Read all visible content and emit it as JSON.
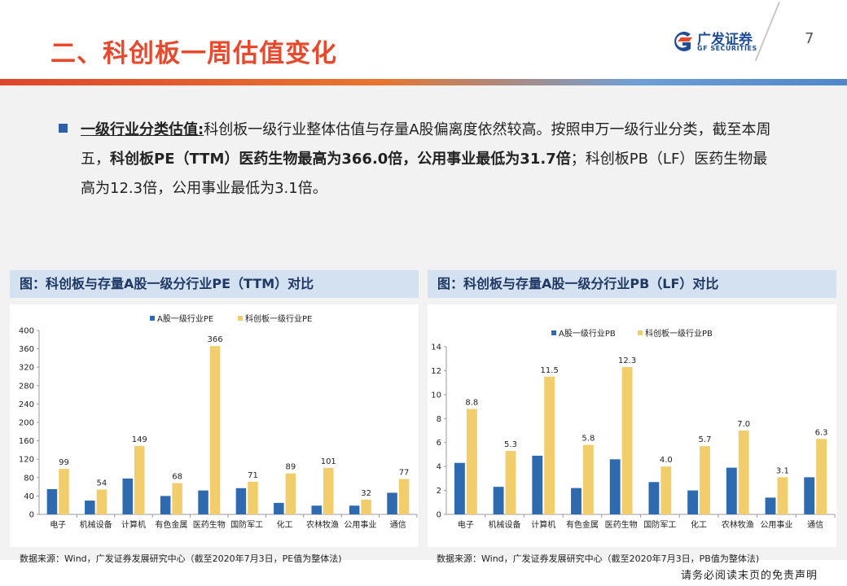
{
  "header": {
    "title": "二、科创板一周估值变化",
    "logo_cn": "广发证券",
    "logo_en": "GF SECURITIES",
    "page_number": "7"
  },
  "paragraph": {
    "lead": "一级行业分类估值:",
    "part1": "科创板一级行业整体估值与存量A股偏离度依然较高。按照申万一级行业分类，截至本周五，",
    "bold_part": "科创板PE（TTM）医药生物最高为366.0倍，公用事业最低为31.7倍",
    "part2": "；科创板PB（LF）医药生物最高为12.3倍，公用事业最低为3.1倍。"
  },
  "captions": {
    "left": "图：科创板与存量A股一级分行业PE（TTM）对比",
    "right": "图：科创板与存量A股一级分行业PB（LF）对比"
  },
  "sources": {
    "left": "数据来源：Wind，广发证券发展研究中心（截至2020年7月3日，PE值为整体法)",
    "right": "数据来源：Wind，广发证券发展研究中心（截至2020年7月3日，PB值为整体法)"
  },
  "disclaimer": "请务必阅读末页的免责声明",
  "colors": {
    "series_a": "#2e6ab0",
    "series_b": "#f1cd6c",
    "title": "#e8482b"
  },
  "chart_data": [
    {
      "type": "bar",
      "categories": [
        "电子",
        "机械设备",
        "计算机",
        "有色金属",
        "医药生物",
        "国防军工",
        "化工",
        "农林牧渔",
        "公用事业",
        "通信"
      ],
      "series": [
        {
          "name": "A股一级行业PE",
          "values": [
            55,
            30,
            78,
            40,
            52,
            57,
            25,
            19,
            19,
            47
          ]
        },
        {
          "name": "科创板一级行业PE",
          "values": [
            99,
            54,
            149,
            68,
            366,
            71,
            89,
            101,
            32,
            77
          ],
          "labels": [
            "99",
            "54",
            "149",
            "68",
            "366",
            "71",
            "89",
            "101",
            "32",
            "77"
          ]
        }
      ],
      "yticks": [
        0,
        40,
        80,
        120,
        160,
        200,
        240,
        280,
        320,
        360,
        400
      ],
      "ylim": [
        0,
        400
      ],
      "legend": "top-left"
    },
    {
      "type": "bar",
      "categories": [
        "电子",
        "机械设备",
        "计算机",
        "有色金属",
        "医药生物",
        "国防军工",
        "化工",
        "农林牧渔",
        "公用事业",
        "通信"
      ],
      "series": [
        {
          "name": "A股一级行业PB",
          "values": [
            4.3,
            2.3,
            4.9,
            2.2,
            4.6,
            2.7,
            2.0,
            3.9,
            1.4,
            3.1
          ]
        },
        {
          "name": "科创板一级行业PB",
          "values": [
            8.8,
            5.3,
            11.5,
            5.8,
            12.3,
            4.0,
            5.7,
            7.0,
            3.1,
            6.3
          ],
          "labels": [
            "8.8",
            "5.3",
            "11.5",
            "5.8",
            "12.3",
            "4.0",
            "5.7",
            "7.0",
            "3.1",
            "6.3"
          ]
        }
      ],
      "yticks": [
        0,
        2,
        4,
        6,
        8,
        10,
        12,
        14
      ],
      "ylim": [
        0,
        14
      ],
      "legend": "top-center"
    }
  ]
}
